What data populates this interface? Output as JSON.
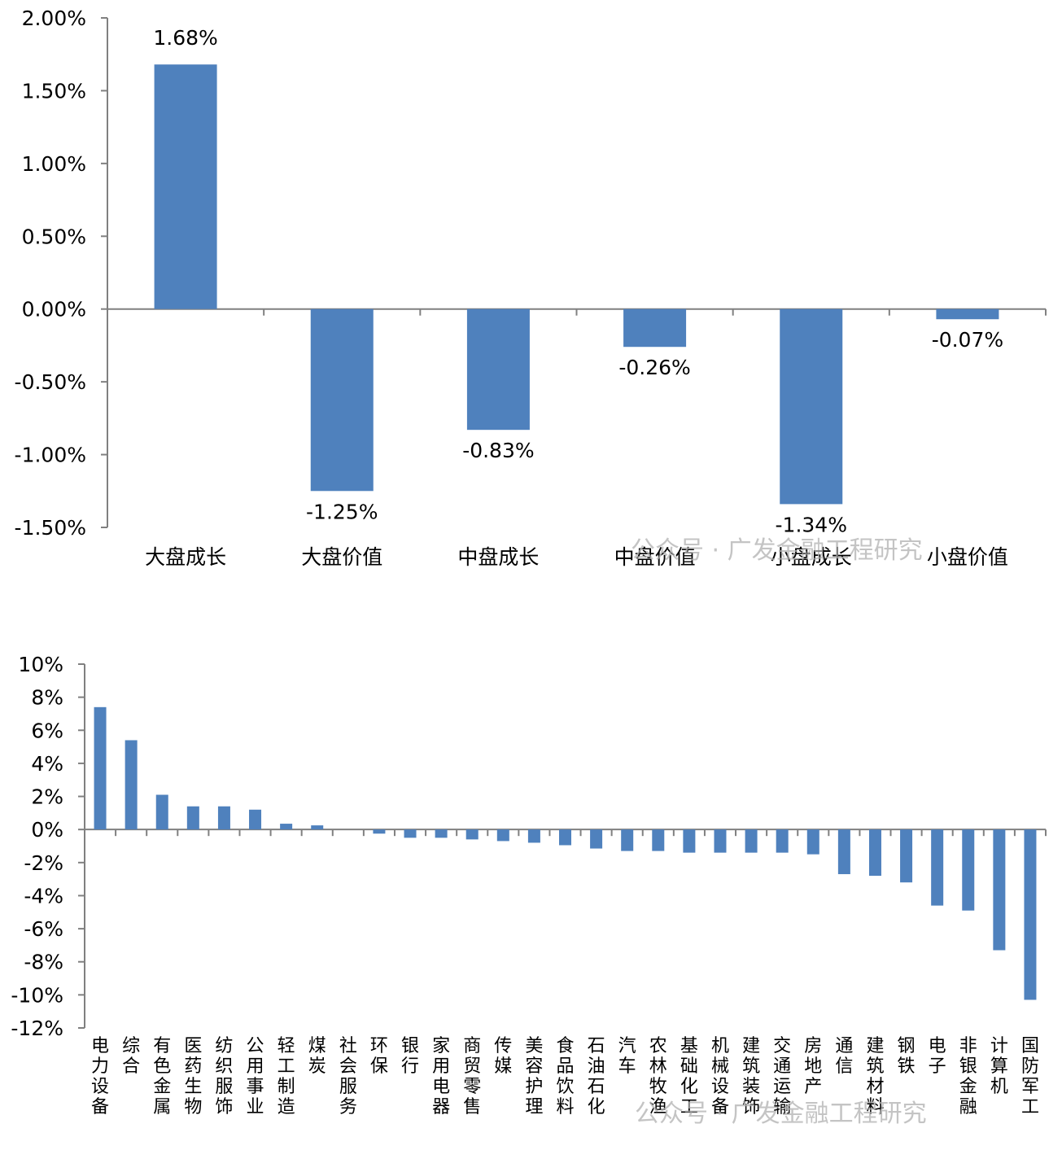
{
  "colors": {
    "bar": "#4f81bd",
    "axis": "#808080",
    "text": "#000000"
  },
  "watermark": "公众号 · 广发金融工程研究",
  "chart_data": [
    {
      "type": "bar",
      "title": "",
      "xlabel": "",
      "ylabel": "",
      "ylim": [
        -1.5,
        2.0
      ],
      "yticks": [
        "2.00%",
        "1.50%",
        "1.00%",
        "0.50%",
        "0.00%",
        "-0.50%",
        "-1.00%",
        "-1.50%"
      ],
      "categories": [
        "大盘成长",
        "大盘价值",
        "中盘成长",
        "中盘价值",
        "小盘成长",
        "小盘价值"
      ],
      "values": [
        1.68,
        -1.25,
        -0.83,
        -0.26,
        -1.34,
        -0.07
      ],
      "data_labels": [
        "1.68%",
        "-1.25%",
        "-0.83%",
        "-0.26%",
        "-1.34%",
        "-0.07%"
      ],
      "grid": false,
      "legend": "none"
    },
    {
      "type": "bar",
      "title": "",
      "xlabel": "",
      "ylabel": "",
      "ylim": [
        -12,
        10
      ],
      "yticks": [
        "10%",
        "8%",
        "6%",
        "4%",
        "2%",
        "0%",
        "-2%",
        "-4%",
        "-6%",
        "-8%",
        "-10%",
        "-12%"
      ],
      "categories": [
        "电力设备",
        "综合",
        "有色金属",
        "医药生物",
        "纺织服饰",
        "公用事业",
        "轻工制造",
        "煤炭",
        "社会服务",
        "环保",
        "银行",
        "家用电器",
        "商贸零售",
        "传媒",
        "美容护理",
        "食品饮料",
        "石油石化",
        "汽车",
        "农林牧渔",
        "基础化工",
        "机械设备",
        "建筑装饰",
        "交通运输",
        "房地产",
        "通信",
        "建筑材料",
        "钢铁",
        "电子",
        "非银金融",
        "计算机",
        "国防军工"
      ],
      "values": [
        7.4,
        5.4,
        2.1,
        1.4,
        1.4,
        1.2,
        0.35,
        0.25,
        0.0,
        -0.25,
        -0.5,
        -0.5,
        -0.6,
        -0.7,
        -0.8,
        -0.95,
        -1.15,
        -1.3,
        -1.3,
        -1.4,
        -1.4,
        -1.4,
        -1.4,
        -1.5,
        -2.7,
        -2.8,
        -3.2,
        -4.6,
        -4.9,
        -7.3,
        -10.3
      ],
      "grid": false,
      "legend": "none"
    }
  ]
}
